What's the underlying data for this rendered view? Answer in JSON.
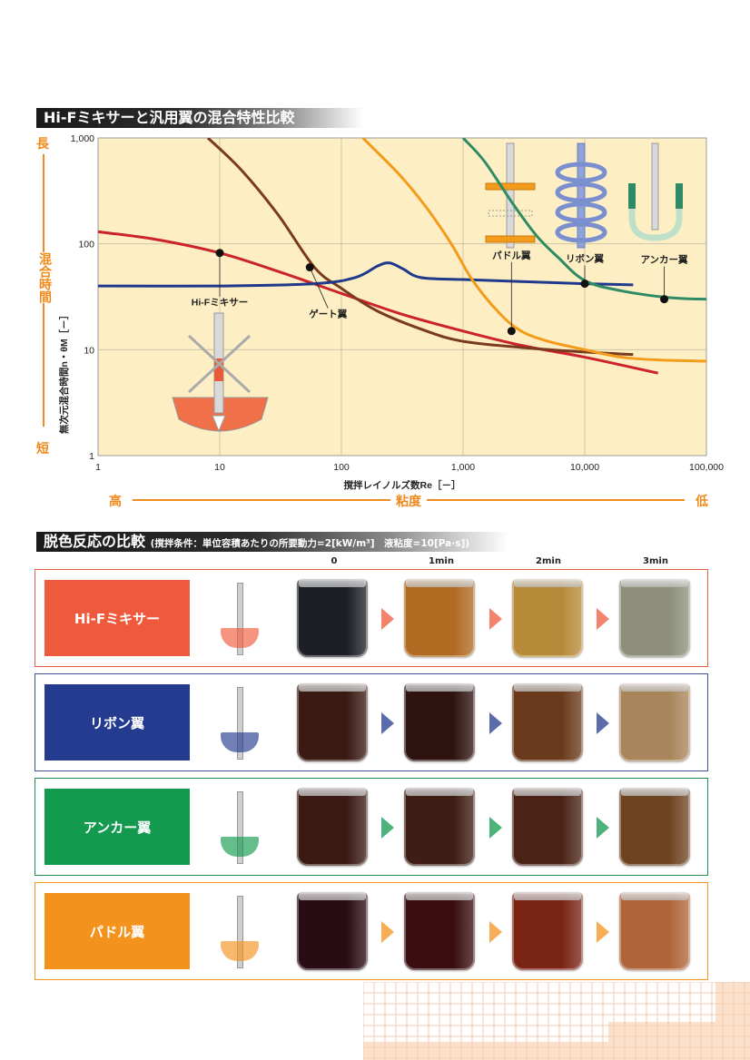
{
  "section1": {
    "title": "Hi-Fミキサーと汎用翼の混合特性比較"
  },
  "chart_data": {
    "type": "line",
    "title": "Hi-Fミキサーと汎用翼の混合特性比較",
    "xlabel": "撹拌レイノルズ数Re［－］",
    "ylabel": "無次元混合時間n・θM［－］",
    "xscale": "log",
    "yscale": "log",
    "xlim": [
      1,
      100000
    ],
    "ylim": [
      1,
      1000
    ],
    "x_ticks": [
      "1",
      "10",
      "100",
      "1,000",
      "10,000",
      "100,000"
    ],
    "y_ticks": [
      "1",
      "10",
      "100",
      "1,000"
    ],
    "grid": true,
    "series": [
      {
        "name": "Hi-Fミキサー",
        "color": "#cc2229",
        "points": [
          [
            1,
            130
          ],
          [
            3,
            110
          ],
          [
            10,
            82
          ],
          [
            30,
            55
          ],
          [
            100,
            34
          ],
          [
            300,
            22
          ],
          [
            1000,
            15
          ],
          [
            3000,
            11
          ],
          [
            10000,
            8.5
          ],
          [
            40000,
            6
          ]
        ]
      },
      {
        "name": "ゲート翼",
        "color": "#7a3b1c",
        "points": [
          [
            8,
            1000
          ],
          [
            15,
            500
          ],
          [
            30,
            190
          ],
          [
            60,
            60
          ],
          [
            100,
            38
          ],
          [
            200,
            23
          ],
          [
            500,
            15
          ],
          [
            1000,
            12
          ],
          [
            3000,
            10.5
          ],
          [
            10000,
            9.5
          ],
          [
            25000,
            9
          ]
        ]
      },
      {
        "name": "リボン翼",
        "color": "#1f3a8c",
        "points": [
          [
            1,
            40
          ],
          [
            10,
            40
          ],
          [
            60,
            42
          ],
          [
            130,
            48
          ],
          [
            200,
            62
          ],
          [
            250,
            66
          ],
          [
            320,
            58
          ],
          [
            450,
            48
          ],
          [
            1000,
            46
          ],
          [
            3000,
            44
          ],
          [
            10000,
            42
          ],
          [
            25000,
            41
          ]
        ]
      },
      {
        "name": "パドル翼",
        "color": "#f39c1c",
        "points": [
          [
            150,
            1000
          ],
          [
            300,
            450
          ],
          [
            500,
            220
          ],
          [
            800,
            100
          ],
          [
            1200,
            45
          ],
          [
            2000,
            22
          ],
          [
            3000,
            15
          ],
          [
            5000,
            12
          ],
          [
            10000,
            10
          ],
          [
            20000,
            8.5
          ],
          [
            40000,
            8
          ],
          [
            100000,
            7.8
          ]
        ]
      },
      {
        "name": "アンカー翼",
        "color": "#2e8b65",
        "points": [
          [
            1000,
            1000
          ],
          [
            1500,
            600
          ],
          [
            2500,
            250
          ],
          [
            4000,
            120
          ],
          [
            6000,
            75
          ],
          [
            10000,
            45
          ],
          [
            20000,
            36
          ],
          [
            50000,
            31
          ],
          [
            100000,
            30
          ]
        ]
      }
    ],
    "annotations": [
      {
        "text": "Hi-Fミキサー",
        "at": [
          10,
          82
        ]
      },
      {
        "text": "ゲート翼",
        "at": [
          55,
          60
        ]
      },
      {
        "text": "パドル翼",
        "at": [
          2500,
          15
        ]
      },
      {
        "text": "リボン翼",
        "at": [
          10000,
          42
        ]
      },
      {
        "text": "アンカー翼",
        "at": [
          45000,
          30
        ]
      }
    ]
  },
  "side_axis": {
    "top": "長",
    "label": "混合時間",
    "bottom": "短"
  },
  "bottom_axis": {
    "left": "高",
    "label": "粘度",
    "right": "低"
  },
  "section2": {
    "title": "脱色反応の比較",
    "condition": "(撹拌条件：単位容積あたりの所要動力=2[kW/m³]　液粘度=10[Pa·s])",
    "time_labels": [
      "0",
      "1min",
      "2min",
      "3min"
    ],
    "rows": [
      {
        "name": "Hi-Fミキサー",
        "color": "#f05a3c",
        "border": "#e8604a",
        "beakers": [
          "#1c2026",
          "#b06a22",
          "#b78a3a",
          "#8d8f7a"
        ]
      },
      {
        "name": "リボン翼",
        "color": "#243b8f",
        "border": "#3a4f9e",
        "beakers": [
          "#3a1a12",
          "#2e1410",
          "#6b3a1c",
          "#a8855a"
        ]
      },
      {
        "name": "アンカー翼",
        "color": "#139a4e",
        "border": "#1e8f4e",
        "beakers": [
          "#3a1a12",
          "#3d1d14",
          "#4a2316",
          "#6e4420"
        ]
      },
      {
        "name": "パドル翼",
        "color": "#f4921e",
        "border": "#f4921e",
        "beakers": [
          "#2a0c14",
          "#3a0e10",
          "#7a2414",
          "#b0643a"
        ]
      }
    ]
  }
}
